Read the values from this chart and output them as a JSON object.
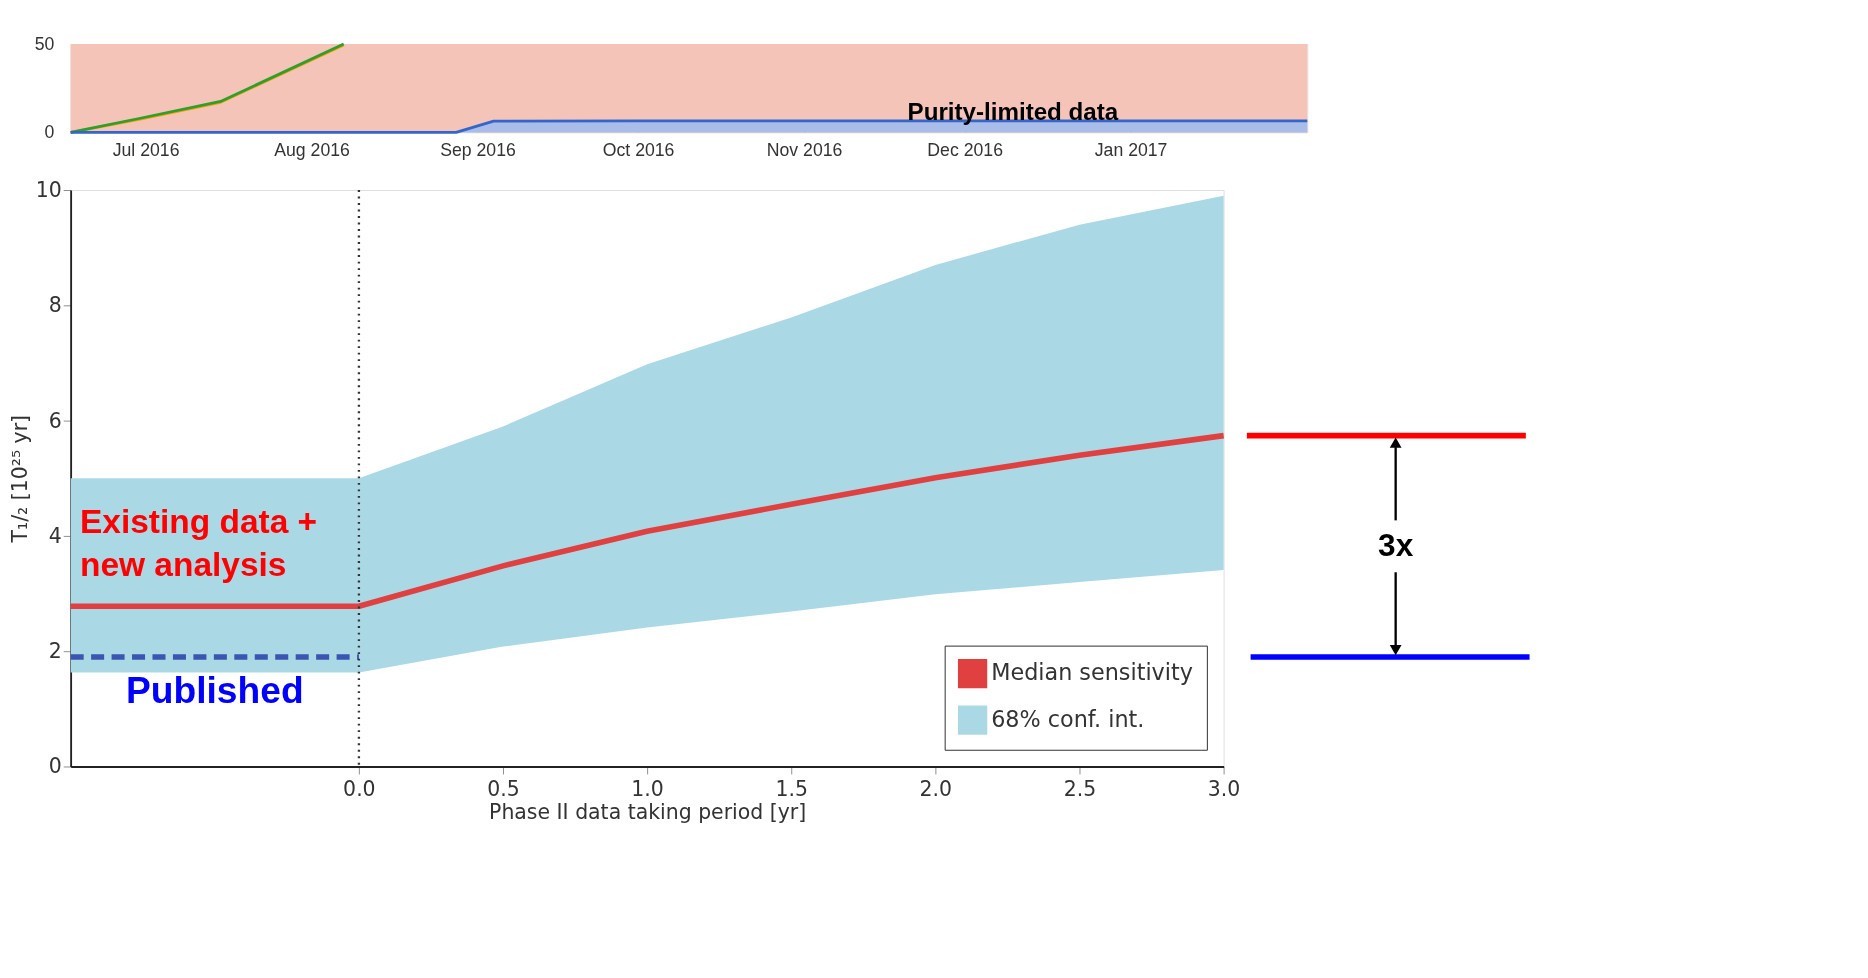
{
  "chart_data": [
    {
      "type": "line",
      "xlabel": "Phase II data taking period [yr]",
      "ylabel": "T₁/₂ [10²⁵ yr]",
      "xlim": [
        -1,
        3
      ],
      "ylim": [
        0,
        10
      ],
      "xticks": [
        {
          "value": 0,
          "label": "0.0"
        },
        {
          "value": 0.5,
          "label": "0.5"
        },
        {
          "value": 1,
          "label": "1.0"
        },
        {
          "value": 1.5,
          "label": "1.5"
        },
        {
          "value": 2,
          "label": "2.0"
        },
        {
          "value": 2.5,
          "label": "2.5"
        },
        {
          "value": 3,
          "label": "3.0"
        }
      ],
      "yticks": [
        0,
        2,
        4,
        6,
        8,
        10
      ],
      "grid": false,
      "legend": "bottom right",
      "series": [
        {
          "name": "Median sensitivity",
          "type": "line",
          "color": "#e04040",
          "x": [
            -1,
            0,
            0.5,
            1,
            1.5,
            2,
            2.5,
            3
          ],
          "values": [
            2.78,
            2.78,
            3.48,
            4.08,
            4.55,
            5.01,
            5.4,
            5.74
          ],
          "lower": [
            1.63,
            1.63,
            2.08,
            2.41,
            2.69,
            2.99,
            3.2,
            3.41
          ],
          "upper": [
            5.0,
            5.0,
            5.9,
            6.98,
            7.79,
            8.7,
            9.4,
            9.9
          ]
        },
        {
          "name": "68% conf. int.",
          "type": "area",
          "color": "#aad9e5"
        },
        {
          "name": "Published",
          "type": "line",
          "line_style": "dashed",
          "color": "#3a56b0",
          "x": [
            -1,
            0
          ],
          "values": [
            1.9,
            1.9
          ]
        }
      ],
      "ref_lines": [
        {
          "axis": "x",
          "value": 0,
          "line_style": "dotted",
          "color": "#333333"
        }
      ],
      "annotations": [
        "Existing data +\nnew analysis",
        "3x"
      ]
    },
    {
      "type": "line",
      "xlim": [
        "2016-06-17",
        "2017-02-03"
      ],
      "ylim": [
        0,
        50
      ],
      "xticks": [
        {
          "value": "2016-07-01",
          "label": "Jul 2016"
        },
        {
          "value": "2016-08-01",
          "label": "Aug 2016"
        },
        {
          "value": "2016-09-01",
          "label": "Sep 2016"
        },
        {
          "value": "2016-10-01",
          "label": "Oct 2016"
        },
        {
          "value": "2016-11-01",
          "label": "Nov 2016"
        },
        {
          "value": "2016-12-01",
          "label": "Dec 2016"
        },
        {
          "value": "2017-01-01",
          "label": "Jan 2017"
        }
      ],
      "yticks": [
        0,
        50
      ],
      "grid": "x",
      "series": [
        {
          "type": "line",
          "color": "#ff9900",
          "x": [
            "2016-06-17",
            "2016-06-30",
            "2016-07-15",
            "2016-08-07"
          ],
          "values": [
            0,
            7.5,
            17,
            49.5
          ]
        },
        {
          "type": "line",
          "color": "#2ca02c",
          "x": [
            "2016-06-17",
            "2016-06-30",
            "2016-07-15",
            "2016-08-07"
          ],
          "values": [
            0,
            8,
            17.5,
            50
          ]
        },
        {
          "type": "area",
          "color": "#3366cc",
          "x": [
            "2016-06-17",
            "2016-08-28",
            "2016-09-04",
            "2016-10-01",
            "2017-02-03"
          ],
          "values": [
            0,
            0,
            6.4,
            6.5,
            6.5
          ]
        }
      ],
      "bands": [
        {
          "axis": "x",
          "from": "2016-06-17",
          "to": "2017-02-03",
          "color": "#f4c4b9"
        }
      ],
      "annotations": [
        {
          "text": "Purity-limited data",
          "x": "2016-12-10",
          "y": 6.5
        }
      ]
    }
  ]
}
